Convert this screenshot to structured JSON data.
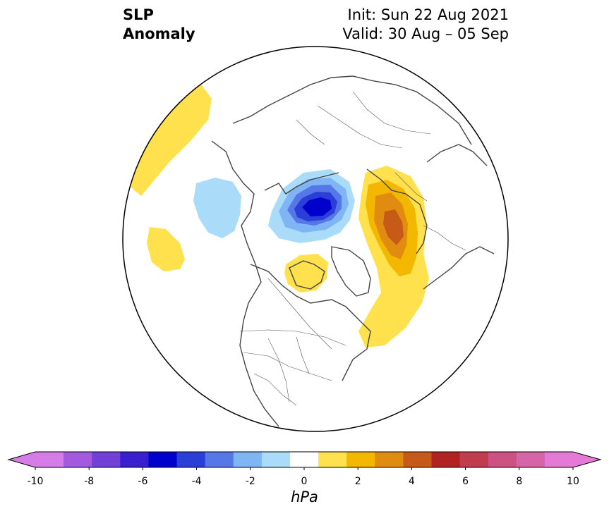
{
  "title": {
    "left_line1": "SLP",
    "left_line2": "Anomaly",
    "init": "Init: Sun 22 Aug 2021",
    "valid": "Valid: 30 Aug – 05 Sep"
  },
  "colorbar": {
    "units": "hPa",
    "levels": [
      -10,
      -9,
      -8,
      -7,
      -6,
      -5,
      -4,
      -3,
      -2,
      -1,
      1,
      2,
      3,
      4,
      5,
      6,
      7,
      8,
      9,
      10
    ],
    "tick_labels": [
      "-10",
      "-8",
      "-6",
      "-4",
      "-2",
      "0",
      "2",
      "4",
      "6",
      "8",
      "10"
    ],
    "colors": [
      "#d67ce8",
      "#a15ae0",
      "#7040d8",
      "#3a1fd0",
      "#0000cc",
      "#2a3fd8",
      "#5577e8",
      "#7fb4f5",
      "#aadcfa",
      "#ffffff",
      "#ffe14d",
      "#f3b700",
      "#e08c10",
      "#c85a18",
      "#b22222",
      "#c23c50",
      "#cc5082",
      "#d864a8",
      "#e47ad6"
    ],
    "extend_low_color": "#d67ce8",
    "extend_high_color": "#e47ad6"
  },
  "map": {
    "projection": "north-polar-stereographic",
    "land_outline_color": "#444444",
    "boundary_color": "#000000"
  }
}
